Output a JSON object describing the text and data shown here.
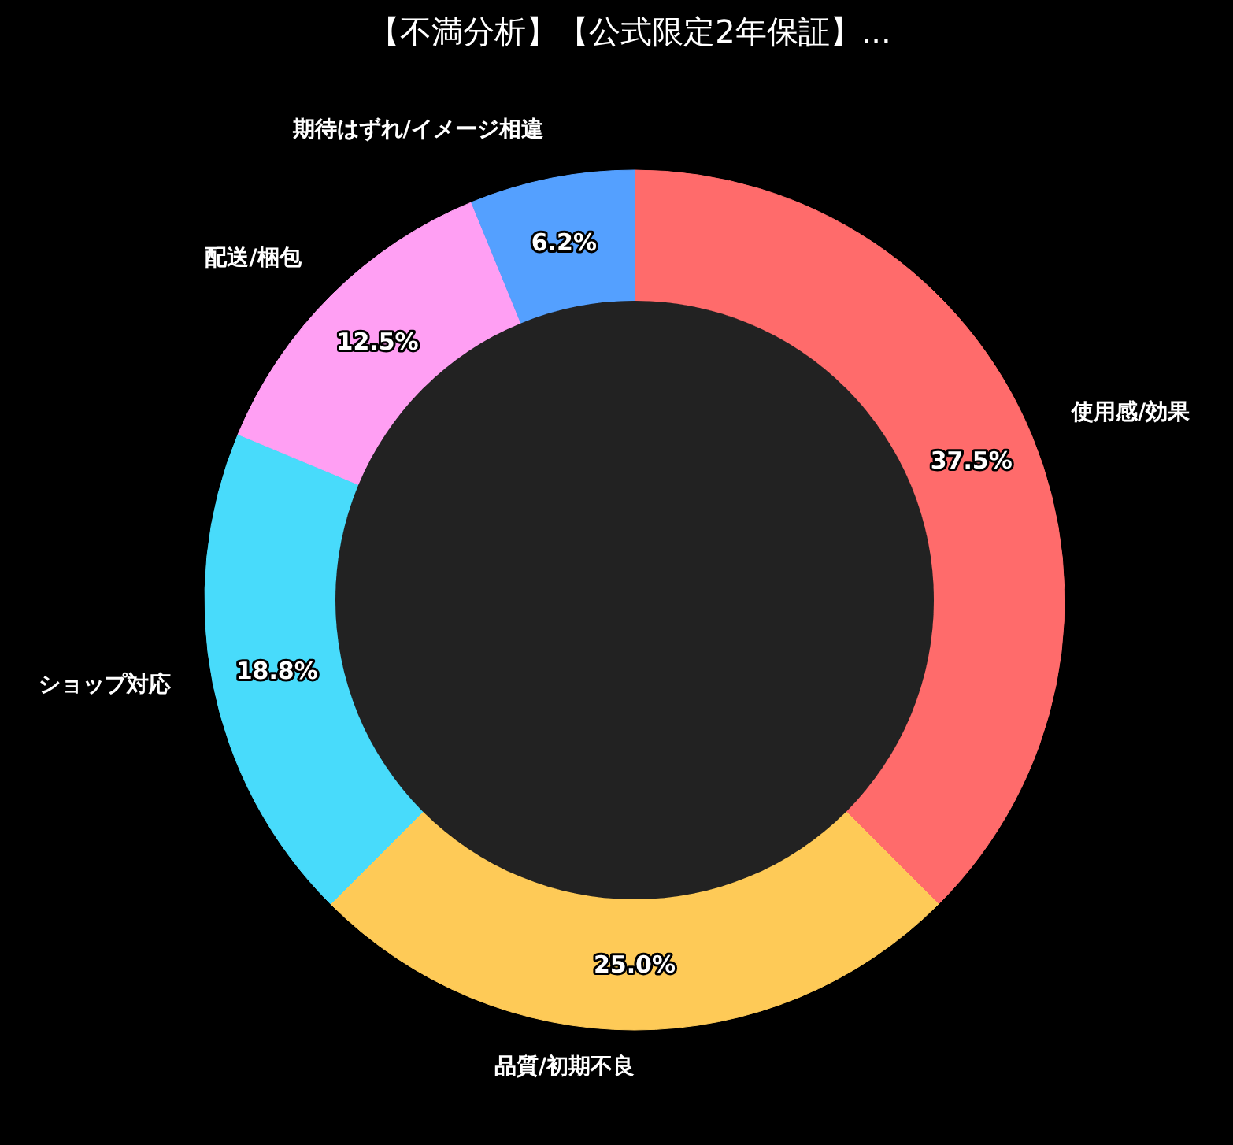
{
  "chart_data": {
    "type": "donut",
    "title": "【不満分析】【公式限定2年保証】...",
    "categories": [
      "使用感/効果",
      "品質/初期不良",
      "ショップ対応",
      "配送/梱包",
      "期待はずれ/イメージ相違"
    ],
    "values": [
      37.5,
      25.0,
      18.8,
      12.5,
      6.2
    ],
    "colors": [
      "#ff6b6b",
      "#feca57",
      "#48dbfb",
      "#ff9ff3",
      "#54a0ff"
    ],
    "value_labels": [
      "37.5%",
      "25.0%",
      "18.8%",
      "12.5%",
      "6.2%"
    ]
  }
}
